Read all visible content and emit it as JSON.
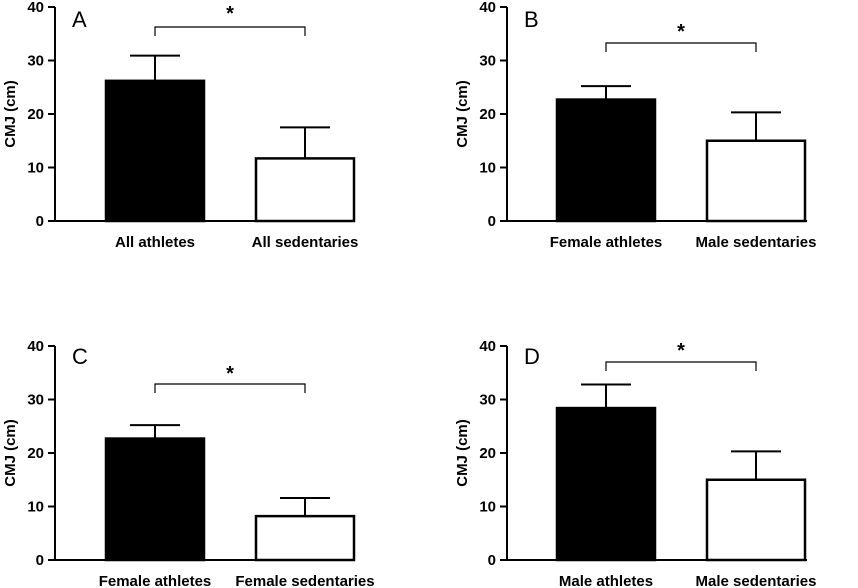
{
  "chart_data": [
    {
      "type": "bar",
      "panel_label": "A",
      "categories": [
        "All athletes",
        "All sedentaries"
      ],
      "values": [
        26.2,
        11.7
      ],
      "errors": [
        4.7,
        5.8
      ],
      "colors": [
        "#000000",
        "#ffffff"
      ],
      "ylabel": "CMJ (cm)",
      "ylim": [
        0,
        40
      ],
      "yticks": [
        "0",
        "10",
        "20",
        "30",
        "40"
      ],
      "significance": "*",
      "grid": false
    },
    {
      "type": "bar",
      "panel_label": "B",
      "categories": [
        "Female athletes",
        "Male sedentaries"
      ],
      "values": [
        22.7,
        15.0
      ],
      "errors": [
        2.5,
        5.3
      ],
      "colors": [
        "#000000",
        "#ffffff"
      ],
      "ylabel": "CMJ (cm)",
      "ylim": [
        0,
        40
      ],
      "yticks": [
        "0",
        "10",
        "20",
        "30",
        "40"
      ],
      "significance": "*",
      "grid": false
    },
    {
      "type": "bar",
      "panel_label": "C",
      "categories": [
        "Female athletes",
        "Female sedentaries"
      ],
      "values": [
        22.7,
        8.2
      ],
      "errors": [
        2.5,
        3.4
      ],
      "colors": [
        "#000000",
        "#ffffff"
      ],
      "ylabel": "CMJ (cm)",
      "ylim": [
        0,
        40
      ],
      "yticks": [
        "0",
        "10",
        "20",
        "30",
        "40"
      ],
      "significance": "*",
      "grid": false
    },
    {
      "type": "bar",
      "panel_label": "D",
      "categories": [
        "Male athletes",
        "Male sedentaries"
      ],
      "values": [
        28.4,
        15.0
      ],
      "errors": [
        4.4,
        5.3
      ],
      "colors": [
        "#000000",
        "#ffffff"
      ],
      "ylabel": "CMJ (cm)",
      "ylim": [
        0,
        40
      ],
      "yticks": [
        "0",
        "10",
        "20",
        "30",
        "40"
      ],
      "significance": "*",
      "grid": false
    }
  ]
}
